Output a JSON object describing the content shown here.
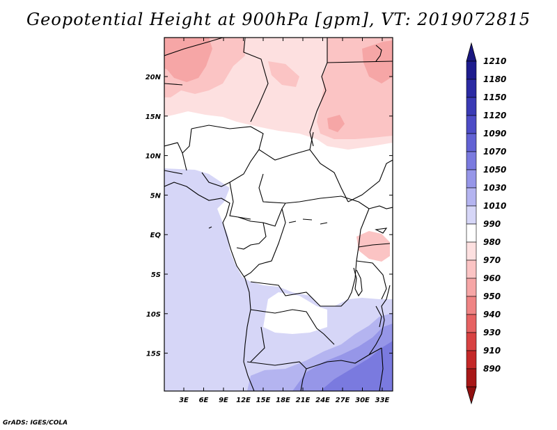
{
  "title": "Geopotential Height at 900hPa [gpm], VT: 2019072815",
  "credit": "GrADS: IGES/COLA",
  "map": {
    "lat_labels": [
      "20N",
      "15N",
      "10N",
      "5N",
      "EQ",
      "5S",
      "10S",
      "15S"
    ],
    "lon_labels": [
      "3E",
      "6E",
      "9E",
      "12E",
      "15E",
      "18E",
      "21E",
      "24E",
      "27E",
      "30E",
      "33E"
    ]
  },
  "colorbar": {
    "levels": [
      {
        "label": "1210",
        "color": "#1e1c8e"
      },
      {
        "label": "1180",
        "color": "#2b2aa3"
      },
      {
        "label": "1150",
        "color": "#3a3ab5"
      },
      {
        "label": "1120",
        "color": "#4d4cc6"
      },
      {
        "label": "1090",
        "color": "#6262d4"
      },
      {
        "label": "1070",
        "color": "#7a7adf"
      },
      {
        "label": "1050",
        "color": "#9696e8"
      },
      {
        "label": "1030",
        "color": "#b4b4f0"
      },
      {
        "label": "1010",
        "color": "#d6d6f7"
      },
      {
        "label": "990",
        "color": "#ffffff"
      },
      {
        "label": "980",
        "color": "#fde0e0"
      },
      {
        "label": "970",
        "color": "#fbc4c4"
      },
      {
        "label": "960",
        "color": "#f6a6a6"
      },
      {
        "label": "950",
        "color": "#ef8484"
      },
      {
        "label": "940",
        "color": "#e66262"
      },
      {
        "label": "930",
        "color": "#d84242"
      },
      {
        "label": "910",
        "color": "#c42828"
      },
      {
        "label": "890",
        "color": "#a81818"
      }
    ],
    "top_color": "#1a1780",
    "bottom_color": "#901010"
  }
}
